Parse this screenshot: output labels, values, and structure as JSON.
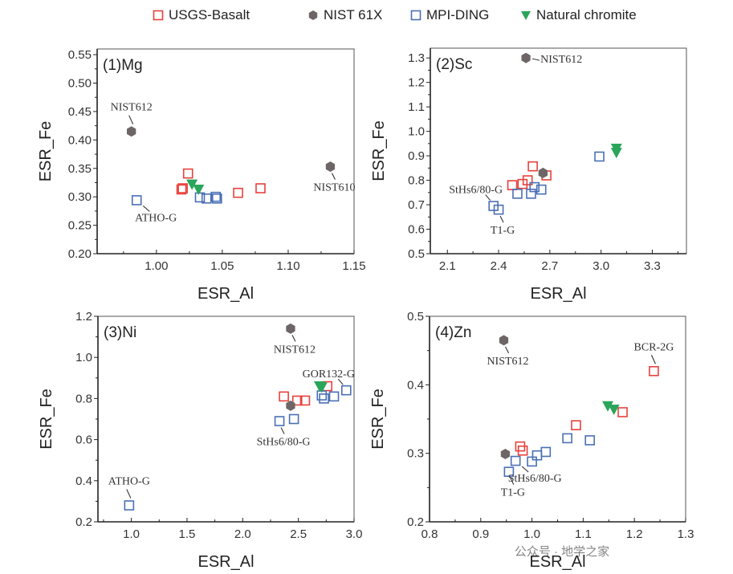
{
  "legend": [
    {
      "label": "USGS-Basalt",
      "marker": "open-square",
      "color": "#e8413c"
    },
    {
      "label": "NIST 61X",
      "marker": "hexagon",
      "color": "#6e6566"
    },
    {
      "label": "MPI-DING",
      "marker": "open-square",
      "color": "#4a6fb5"
    },
    {
      "label": "Natural chromite",
      "marker": "down-triangle",
      "color": "#2aa55a"
    }
  ],
  "chart_data": [
    {
      "type": "scatter",
      "title": "(1)Mg",
      "xlabel": "ESR_Al",
      "ylabel": "ESR_Fe",
      "xlim": [
        0.955,
        1.15
      ],
      "ylim": [
        0.2,
        0.56
      ],
      "xticks": [
        "1.00",
        "1.05",
        "1.10",
        "1.15"
      ],
      "xtick_values": [
        1.0,
        1.05,
        1.1,
        1.15
      ],
      "yticks": [
        "0.20",
        "0.25",
        "0.30",
        "0.35",
        "0.40",
        "0.45",
        "0.50",
        "0.55"
      ],
      "ytick_values": [
        0.2,
        0.25,
        0.3,
        0.35,
        0.4,
        0.45,
        0.5,
        0.55
      ],
      "series": [
        {
          "name": "USGS-Basalt",
          "points": [
            [
              1.019,
              0.313
            ],
            [
              1.02,
              0.315
            ],
            [
              1.024,
              0.341
            ],
            [
              1.062,
              0.307
            ],
            [
              1.079,
              0.315
            ]
          ]
        },
        {
          "name": "NIST 61X",
          "points": [
            [
              0.981,
              0.415
            ],
            [
              1.132,
              0.353
            ]
          ]
        },
        {
          "name": "MPI-DING",
          "points": [
            [
              0.985,
              0.294
            ],
            [
              1.033,
              0.299
            ],
            [
              1.038,
              0.297
            ],
            [
              1.045,
              0.3
            ],
            [
              1.046,
              0.297
            ]
          ]
        },
        {
          "name": "Natural chromite",
          "points": [
            [
              1.027,
              0.322
            ],
            [
              1.032,
              0.313
            ]
          ]
        }
      ],
      "annotations": [
        {
          "text": "NIST612",
          "x": 0.981,
          "y": 0.415,
          "pos": "above"
        },
        {
          "text": "NIST610",
          "x": 1.132,
          "y": 0.353,
          "pos": "below"
        },
        {
          "text": "ATHO-G",
          "x": 0.985,
          "y": 0.294,
          "pos": "below-right"
        }
      ]
    },
    {
      "type": "scatter",
      "title": "(2)Sc",
      "xlabel": "ESR_Al",
      "ylabel": "ESR_Fe",
      "xlim": [
        2.0,
        3.5
      ],
      "ylim": [
        0.5,
        1.34
      ],
      "xticks": [
        "2.1",
        "2.4",
        "2.7",
        "3.0",
        "3.3"
      ],
      "xtick_values": [
        2.1,
        2.4,
        2.7,
        3.0,
        3.3
      ],
      "yticks": [
        "0.5",
        "0.6",
        "0.7",
        "0.8",
        "0.9",
        "1.0",
        "1.1",
        "1.2",
        "1.3"
      ],
      "ytick_values": [
        0.5,
        0.6,
        0.7,
        0.8,
        0.9,
        1.0,
        1.1,
        1.2,
        1.3
      ],
      "series": [
        {
          "name": "USGS-Basalt",
          "points": [
            [
              2.48,
              0.78
            ],
            [
              2.54,
              0.785
            ],
            [
              2.57,
              0.8
            ],
            [
              2.6,
              0.857
            ],
            [
              2.68,
              0.82
            ]
          ]
        },
        {
          "name": "NIST 61X",
          "points": [
            [
              2.56,
              1.3
            ],
            [
              2.66,
              0.83
            ]
          ]
        },
        {
          "name": "MPI-DING",
          "points": [
            [
              2.37,
              0.695
            ],
            [
              2.4,
              0.68
            ],
            [
              2.51,
              0.745
            ],
            [
              2.59,
              0.745
            ],
            [
              2.61,
              0.772
            ],
            [
              2.65,
              0.762
            ],
            [
              2.99,
              0.897
            ]
          ]
        },
        {
          "name": "Natural chromite",
          "points": [
            [
              3.09,
              0.93
            ],
            [
              3.09,
              0.913
            ]
          ]
        }
      ],
      "annotations": [
        {
          "text": "NIST612",
          "x": 2.56,
          "y": 1.3,
          "pos": "right"
        },
        {
          "text": "StHs6/80-G",
          "x": 2.37,
          "y": 0.695,
          "pos": "above-left"
        },
        {
          "text": "T1-G",
          "x": 2.4,
          "y": 0.68,
          "pos": "below"
        }
      ]
    },
    {
      "type": "scatter",
      "title": "(3)Ni",
      "xlabel": "ESR_Al",
      "ylabel": "ESR_Fe",
      "xlim": [
        0.7,
        3.0
      ],
      "ylim": [
        0.2,
        1.2
      ],
      "xticks": [
        "1.0",
        "1.5",
        "2.0",
        "2.5",
        "3.0"
      ],
      "xtick_values": [
        1.0,
        1.5,
        2.0,
        2.5,
        3.0
      ],
      "yticks": [
        "0.2",
        "0.4",
        "0.6",
        "0.8",
        "1.0",
        "1.2"
      ],
      "ytick_values": [
        0.2,
        0.4,
        0.6,
        0.8,
        1.0,
        1.2
      ],
      "series": [
        {
          "name": "USGS-Basalt",
          "points": [
            [
              2.37,
              0.81
            ],
            [
              2.49,
              0.79
            ],
            [
              2.56,
              0.79
            ],
            [
              2.76,
              0.86
            ]
          ]
        },
        {
          "name": "NIST 61X",
          "points": [
            [
              2.43,
              1.14
            ],
            [
              2.43,
              0.765
            ]
          ]
        },
        {
          "name": "MPI-DING",
          "points": [
            [
              0.98,
              0.28
            ],
            [
              2.33,
              0.69
            ],
            [
              2.46,
              0.7
            ],
            [
              2.71,
              0.815
            ],
            [
              2.73,
              0.8
            ],
            [
              2.82,
              0.81
            ],
            [
              2.93,
              0.84
            ]
          ]
        },
        {
          "name": "Natural chromite",
          "points": [
            [
              2.69,
              0.86
            ],
            [
              2.71,
              0.855
            ]
          ]
        }
      ],
      "annotations": [
        {
          "text": "NIST612",
          "x": 2.43,
          "y": 1.14,
          "pos": "below"
        },
        {
          "text": "GOR132-G",
          "x": 2.93,
          "y": 0.84,
          "pos": "above-left"
        },
        {
          "text": "StHs6/80-G",
          "x": 2.33,
          "y": 0.69,
          "pos": "below"
        },
        {
          "text": "ATHO-G",
          "x": 0.98,
          "y": 0.28,
          "pos": "above"
        }
      ]
    },
    {
      "type": "scatter",
      "title": "(4)Zn",
      "xlabel": "ESR_Al",
      "ylabel": "ESR_Fe",
      "xlim": [
        0.8,
        1.3
      ],
      "ylim": [
        0.2,
        0.5
      ],
      "xticks": [
        "0.8",
        "0.9",
        "1.0",
        "1.1",
        "1.2",
        "1.3"
      ],
      "xtick_values": [
        0.8,
        0.9,
        1.0,
        1.1,
        1.2,
        1.3
      ],
      "yticks": [
        "0.2",
        "0.3",
        "0.4",
        "0.5"
      ],
      "ytick_values": [
        0.2,
        0.3,
        0.4,
        0.5
      ],
      "series": [
        {
          "name": "USGS-Basalt",
          "points": [
            [
              0.977,
              0.31
            ],
            [
              0.982,
              0.304
            ],
            [
              1.086,
              0.341
            ],
            [
              1.177,
              0.36
            ],
            [
              1.238,
              0.42
            ]
          ]
        },
        {
          "name": "NIST 61X",
          "points": [
            [
              0.945,
              0.465
            ],
            [
              0.948,
              0.299
            ]
          ]
        },
        {
          "name": "MPI-DING",
          "points": [
            [
              0.955,
              0.273
            ],
            [
              0.968,
              0.289
            ],
            [
              1.0,
              0.288
            ],
            [
              1.01,
              0.297
            ],
            [
              1.027,
              0.302
            ],
            [
              1.069,
              0.322
            ],
            [
              1.113,
              0.319
            ]
          ]
        },
        {
          "name": "Natural chromite",
          "points": [
            [
              1.148,
              0.369
            ],
            [
              1.16,
              0.364
            ]
          ]
        }
      ],
      "annotations": [
        {
          "text": "NIST612",
          "x": 0.945,
          "y": 0.465,
          "pos": "below"
        },
        {
          "text": "BCR-2G",
          "x": 1.238,
          "y": 0.42,
          "pos": "above"
        },
        {
          "text": "StHs6/80-G",
          "x": 0.968,
          "y": 0.289,
          "pos": "below-right"
        },
        {
          "text": "T1-G",
          "x": 0.955,
          "y": 0.273,
          "pos": "below"
        }
      ]
    }
  ],
  "watermark": "公众号 · 地学之家"
}
